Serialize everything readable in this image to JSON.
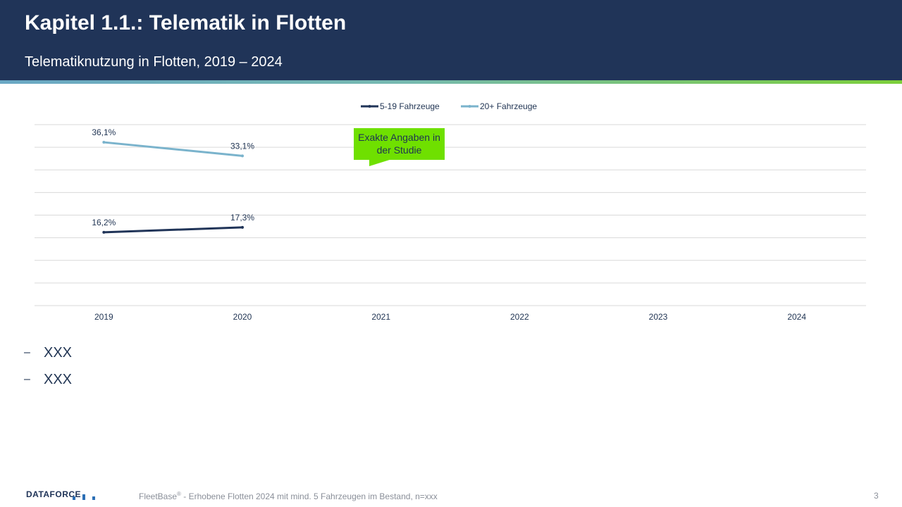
{
  "header": {
    "title": "Kapitel 1.1.: Telematik in Flotten",
    "subtitle": "Telematiknutzung in Flotten, 2019 – 2024"
  },
  "chart_data": {
    "type": "line",
    "x": [
      "2019",
      "2020",
      "2021",
      "2022",
      "2023",
      "2024"
    ],
    "ylim": [
      0,
      40
    ],
    "grid": true,
    "legend_position": "top",
    "series": [
      {
        "name": "5-19 Fahrzeuge",
        "color": "#203458",
        "values": [
          16.2,
          17.3,
          null,
          null,
          null,
          null
        ],
        "labels": [
          "16,2%",
          "17,3%"
        ]
      },
      {
        "name": "20+ Fahrzeuge",
        "color": "#7ab3cc",
        "values": [
          36.1,
          33.1,
          null,
          null,
          null,
          null
        ],
        "labels": [
          "36,1%",
          "33,1%"
        ]
      }
    ]
  },
  "callout": "Exakte Angaben in der Studie",
  "bullets": [
    "XXX",
    "XXX"
  ],
  "footer": {
    "logo": "DATAFORCE",
    "source_brand": "FleetBase",
    "source_mark": "®",
    "source_text": " - Erhobene Flotten 2024 mit mind. 5 Fahrzeugen im Bestand, n=xxx",
    "page": "3"
  }
}
